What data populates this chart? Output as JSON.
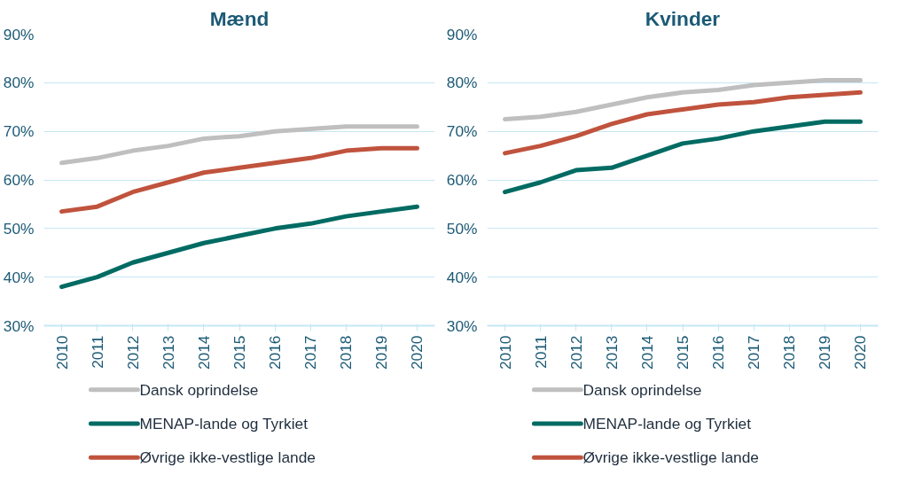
{
  "chart_data": [
    {
      "type": "line",
      "title": "Mænd",
      "categories": [
        "2010",
        "2011",
        "2012",
        "2013",
        "2014",
        "2015",
        "2016",
        "2017",
        "2018",
        "2019",
        "2020"
      ],
      "ylim": [
        30,
        90
      ],
      "yticks": [
        {
          "value": 30,
          "label": "30%"
        },
        {
          "value": 40,
          "label": "40%"
        },
        {
          "value": 50,
          "label": "50%"
        },
        {
          "value": 60,
          "label": "60%"
        },
        {
          "value": 70,
          "label": "70%"
        },
        {
          "value": 80,
          "label": "80%"
        },
        {
          "value": 90,
          "label": "90%"
        }
      ],
      "grid": "y",
      "legend": "bottom",
      "marker": "none",
      "line_style": "solid",
      "series": [
        {
          "name": "Dansk oprindelse",
          "color": "#bfbfbf",
          "values": [
            63.5,
            64.5,
            66,
            67,
            68.5,
            69,
            70,
            70.5,
            71,
            71,
            71
          ]
        },
        {
          "name": "MENAP-lande og Tyrkiet",
          "color": "#006b63",
          "values": [
            38,
            40,
            43,
            45,
            47,
            48.5,
            50,
            51,
            52.5,
            53.5,
            54.5
          ]
        },
        {
          "name": "Øvrige ikke-vestlige lande",
          "color": "#c0533d",
          "values": [
            53.5,
            54.5,
            57.5,
            59.5,
            61.5,
            62.5,
            63.5,
            64.5,
            66,
            66.5,
            66.5
          ]
        }
      ]
    },
    {
      "type": "line",
      "title": "Kvinder",
      "categories": [
        "2010",
        "2011",
        "2012",
        "2013",
        "2014",
        "2015",
        "2016",
        "2017",
        "2018",
        "2019",
        "2020"
      ],
      "ylim": [
        30,
        90
      ],
      "yticks": [
        {
          "value": 30,
          "label": "30%"
        },
        {
          "value": 40,
          "label": "40%"
        },
        {
          "value": 50,
          "label": "50%"
        },
        {
          "value": 60,
          "label": "60%"
        },
        {
          "value": 70,
          "label": "70%"
        },
        {
          "value": 80,
          "label": "80%"
        },
        {
          "value": 90,
          "label": "90%"
        }
      ],
      "grid": "y",
      "legend": "bottom",
      "marker": "none",
      "line_style": "solid",
      "series": [
        {
          "name": "Dansk oprindelse",
          "color": "#bfbfbf",
          "values": [
            72.5,
            73,
            74,
            75.5,
            77,
            78,
            78.5,
            79.5,
            80,
            80.5,
            80.5
          ]
        },
        {
          "name": "MENAP-lande og Tyrkiet",
          "color": "#006b63",
          "values": [
            57.5,
            59.5,
            62,
            62.5,
            65,
            67.5,
            68.5,
            70,
            71,
            72,
            72
          ]
        },
        {
          "name": "Øvrige ikke-vestlige lande",
          "color": "#c0533d",
          "values": [
            65.5,
            67,
            69,
            71.5,
            73.5,
            74.5,
            75.5,
            76,
            77,
            77.5,
            78
          ]
        }
      ]
    }
  ]
}
